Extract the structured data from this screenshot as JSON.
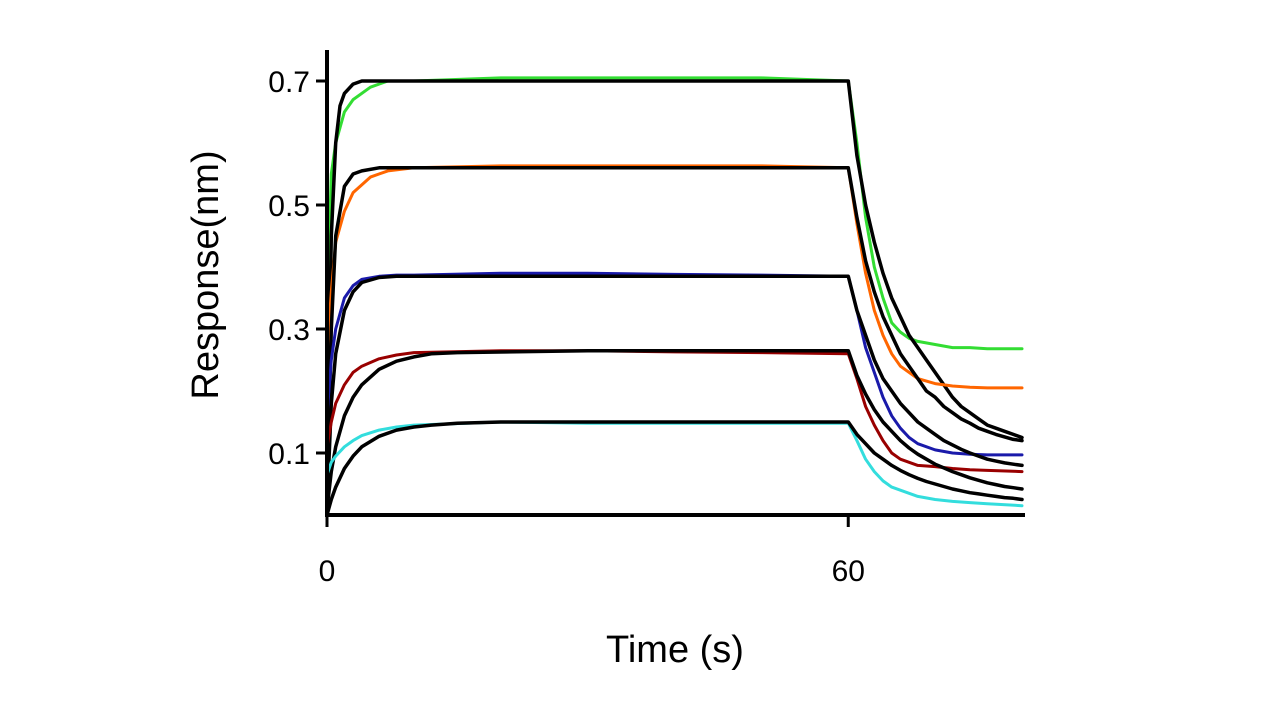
{
  "chart_data": {
    "type": "line",
    "xlabel": "Time (s)",
    "ylabel": "Response(nm)",
    "xlim": [
      0,
      80
    ],
    "ylim": [
      0,
      0.75
    ],
    "x_ticks": [
      0,
      60
    ],
    "x_tick_labels": [
      "0",
      "60"
    ],
    "y_ticks": [
      0.1,
      0.3,
      0.5,
      0.7
    ],
    "y_tick_labels": [
      "0.1",
      "0.3",
      "0.5",
      "0.7"
    ],
    "grid": false,
    "legend": "none",
    "colors": {
      "measured": [
        "#33dd33",
        "#ff6600",
        "#1a1aaa",
        "#990000",
        "#33dddd"
      ],
      "fit": "#000000"
    },
    "series": [
      {
        "color": "#33dd33",
        "type": "measured",
        "x": [
          0,
          0.5,
          1,
          2,
          3,
          5,
          7,
          10,
          20,
          30,
          40,
          50,
          60,
          61,
          62,
          63,
          64,
          65,
          66,
          67,
          68,
          70,
          72,
          74,
          76,
          80
        ],
        "y": [
          0.32,
          0.55,
          0.6,
          0.65,
          0.67,
          0.69,
          0.7,
          0.7,
          0.705,
          0.705,
          0.705,
          0.705,
          0.7,
          0.6,
          0.48,
          0.4,
          0.35,
          0.31,
          0.295,
          0.285,
          0.28,
          0.275,
          0.27,
          0.27,
          0.268,
          0.268
        ]
      },
      {
        "color": "#000000",
        "type": "fit",
        "x": [
          0,
          0.5,
          1,
          1.5,
          2,
          3,
          4,
          6,
          10,
          30,
          60,
          61,
          62,
          63,
          64,
          65,
          66,
          67,
          68,
          69,
          70,
          71,
          72,
          73,
          74,
          75,
          76,
          77,
          78,
          79,
          80
        ],
        "y": [
          0.03,
          0.45,
          0.6,
          0.66,
          0.68,
          0.695,
          0.7,
          0.7,
          0.7,
          0.7,
          0.7,
          0.58,
          0.5,
          0.44,
          0.39,
          0.35,
          0.32,
          0.29,
          0.27,
          0.25,
          0.23,
          0.21,
          0.19,
          0.175,
          0.165,
          0.155,
          0.145,
          0.14,
          0.135,
          0.13,
          0.125
        ]
      },
      {
        "color": "#ff6600",
        "type": "measured",
        "x": [
          0,
          0.5,
          1,
          2,
          3,
          5,
          7,
          10,
          20,
          30,
          40,
          50,
          60,
          61,
          62,
          63,
          64,
          65,
          66,
          67,
          68,
          70,
          72,
          74,
          76,
          80
        ],
        "y": [
          0.26,
          0.36,
          0.44,
          0.49,
          0.52,
          0.545,
          0.555,
          0.56,
          0.563,
          0.563,
          0.563,
          0.563,
          0.56,
          0.47,
          0.39,
          0.33,
          0.29,
          0.26,
          0.24,
          0.23,
          0.22,
          0.212,
          0.208,
          0.206,
          0.205,
          0.205
        ]
      },
      {
        "color": "#000000",
        "type": "fit",
        "x": [
          0,
          0.5,
          1,
          2,
          3,
          4,
          6,
          8,
          10,
          30,
          60,
          61,
          62,
          63,
          64,
          65,
          66,
          67,
          68,
          69,
          70,
          71,
          72,
          73,
          74,
          75,
          76,
          77,
          78,
          79,
          80
        ],
        "y": [
          0.02,
          0.3,
          0.45,
          0.53,
          0.55,
          0.555,
          0.56,
          0.56,
          0.56,
          0.56,
          0.56,
          0.48,
          0.41,
          0.36,
          0.32,
          0.29,
          0.26,
          0.24,
          0.22,
          0.2,
          0.19,
          0.175,
          0.165,
          0.155,
          0.148,
          0.14,
          0.135,
          0.13,
          0.126,
          0.122,
          0.12
        ]
      },
      {
        "color": "#1a1aaa",
        "type": "measured",
        "x": [
          0,
          0.5,
          1,
          2,
          3,
          4,
          6,
          8,
          10,
          20,
          30,
          40,
          50,
          60,
          61,
          62,
          63,
          64,
          65,
          66,
          67,
          68,
          70,
          72,
          74,
          76,
          80
        ],
        "y": [
          0.16,
          0.25,
          0.3,
          0.35,
          0.37,
          0.38,
          0.385,
          0.387,
          0.387,
          0.39,
          0.39,
          0.388,
          0.387,
          0.385,
          0.33,
          0.27,
          0.23,
          0.19,
          0.16,
          0.14,
          0.125,
          0.115,
          0.105,
          0.1,
          0.098,
          0.097,
          0.097
        ]
      },
      {
        "color": "#000000",
        "type": "fit",
        "x": [
          0,
          0.5,
          1,
          2,
          3,
          4,
          6,
          8,
          10,
          30,
          60,
          61,
          62,
          63,
          64,
          65,
          66,
          67,
          68,
          69,
          70,
          71,
          72,
          73,
          74,
          75,
          76,
          77,
          78,
          79,
          80
        ],
        "y": [
          0.01,
          0.18,
          0.26,
          0.33,
          0.36,
          0.375,
          0.383,
          0.385,
          0.385,
          0.385,
          0.385,
          0.33,
          0.29,
          0.25,
          0.22,
          0.2,
          0.18,
          0.165,
          0.15,
          0.14,
          0.13,
          0.12,
          0.113,
          0.106,
          0.1,
          0.095,
          0.09,
          0.087,
          0.084,
          0.082,
          0.08
        ]
      },
      {
        "color": "#990000",
        "type": "measured",
        "x": [
          0,
          0.5,
          1,
          2,
          3,
          4,
          6,
          8,
          10,
          20,
          30,
          40,
          50,
          60,
          61,
          62,
          63,
          64,
          65,
          66,
          67,
          68,
          70,
          72,
          74,
          76,
          80
        ],
        "y": [
          0.11,
          0.15,
          0.18,
          0.21,
          0.23,
          0.24,
          0.252,
          0.258,
          0.262,
          0.265,
          0.265,
          0.263,
          0.262,
          0.26,
          0.22,
          0.175,
          0.145,
          0.12,
          0.1,
          0.09,
          0.085,
          0.08,
          0.078,
          0.075,
          0.073,
          0.072,
          0.07
        ]
      },
      {
        "color": "#000000",
        "type": "fit",
        "x": [
          0,
          0.5,
          1,
          2,
          3,
          4,
          6,
          8,
          10,
          12,
          15,
          30,
          60,
          61,
          62,
          63,
          64,
          65,
          66,
          67,
          68,
          69,
          70,
          71,
          72,
          73,
          74,
          75,
          76,
          77,
          78,
          79,
          80
        ],
        "y": [
          0.01,
          0.07,
          0.11,
          0.16,
          0.19,
          0.21,
          0.235,
          0.248,
          0.255,
          0.26,
          0.262,
          0.265,
          0.265,
          0.225,
          0.195,
          0.17,
          0.15,
          0.135,
          0.12,
          0.108,
          0.098,
          0.09,
          0.082,
          0.076,
          0.07,
          0.065,
          0.06,
          0.056,
          0.052,
          0.049,
          0.046,
          0.044,
          0.042
        ]
      },
      {
        "color": "#33dddd",
        "type": "measured",
        "x": [
          0,
          0.5,
          1,
          2,
          3,
          4,
          6,
          8,
          10,
          20,
          30,
          40,
          50,
          60,
          61,
          62,
          63,
          64,
          65,
          66,
          67,
          68,
          70,
          72,
          74,
          76,
          80
        ],
        "y": [
          0.065,
          0.085,
          0.095,
          0.11,
          0.12,
          0.128,
          0.137,
          0.142,
          0.145,
          0.15,
          0.148,
          0.148,
          0.148,
          0.148,
          0.12,
          0.09,
          0.07,
          0.055,
          0.045,
          0.04,
          0.035,
          0.03,
          0.025,
          0.022,
          0.02,
          0.018,
          0.015
        ]
      },
      {
        "color": "#000000",
        "type": "fit",
        "x": [
          0,
          0.5,
          1,
          2,
          3,
          4,
          6,
          8,
          10,
          12,
          15,
          20,
          30,
          60,
          61,
          62,
          63,
          64,
          65,
          66,
          67,
          68,
          69,
          70,
          71,
          72,
          73,
          74,
          75,
          76,
          77,
          78,
          79,
          80
        ],
        "y": [
          0.0,
          0.025,
          0.045,
          0.075,
          0.095,
          0.11,
          0.127,
          0.137,
          0.142,
          0.145,
          0.148,
          0.15,
          0.15,
          0.15,
          0.13,
          0.115,
          0.1,
          0.09,
          0.08,
          0.072,
          0.065,
          0.059,
          0.054,
          0.05,
          0.046,
          0.042,
          0.039,
          0.036,
          0.034,
          0.032,
          0.03,
          0.028,
          0.027,
          0.025
        ]
      }
    ]
  }
}
